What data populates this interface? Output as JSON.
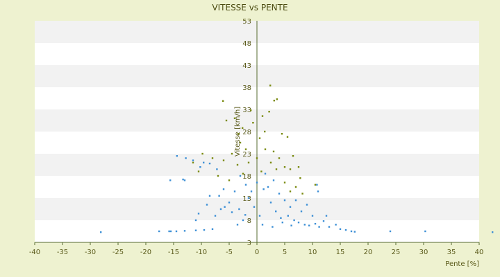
{
  "chart_data": {
    "type": "scatter",
    "title": "VITESSE vs PENTE",
    "xlabel": "Pente [%]",
    "ylabel": "Vitesse [km/h]",
    "xlim": [
      -40,
      40
    ],
    "ylim": [
      3,
      53
    ],
    "xticks": [
      -40,
      -35,
      -30,
      -25,
      -20,
      -15,
      -10,
      -5,
      0,
      5,
      10,
      15,
      20,
      25,
      30,
      35,
      40
    ],
    "yticks": [
      3,
      8,
      13,
      18,
      23,
      28,
      33,
      38,
      43,
      48,
      53
    ],
    "ytick_labels": [
      "3",
      "8",
      "13",
      "18",
      "23",
      "28",
      "33",
      "38",
      "43",
      "48",
      "53"
    ],
    "grid": "horizontal alternating bands",
    "legend": "none",
    "colors": {
      "series_blue": "#3c8fd6",
      "series_olive": "#7a8a10",
      "band_light": "#ffffff",
      "band_dark": "#f2f2f2",
      "background": "#eef2d0",
      "axis": "#556b2f"
    },
    "series": [
      {
        "color": "#3c8fd6",
        "points": [
          [
            -28.1,
            5.3
          ],
          [
            -17.6,
            5.5
          ],
          [
            -15.8,
            5.5
          ],
          [
            -15.5,
            5.5
          ],
          [
            -14.5,
            5.5
          ],
          [
            -13.0,
            5.6
          ],
          [
            -11.0,
            5.7
          ],
          [
            -9.5,
            5.8
          ],
          [
            -8.0,
            6.0
          ],
          [
            -15.6,
            17.0
          ],
          [
            -13.3,
            17.2
          ],
          [
            -13.0,
            17.0
          ],
          [
            -14.4,
            22.5
          ],
          [
            -12.8,
            22.0
          ],
          [
            -11.5,
            21.5
          ],
          [
            -10.2,
            20.0
          ],
          [
            -9.6,
            21.0
          ],
          [
            -8.5,
            20.8
          ],
          [
            -7.2,
            19.5
          ],
          [
            -6.8,
            13.5
          ],
          [
            -6.0,
            15.0
          ],
          [
            -5.8,
            11.0
          ],
          [
            -4.5,
            9.8
          ],
          [
            -3.2,
            10.5
          ],
          [
            -2.1,
            9.2
          ],
          [
            -1.0,
            14.5
          ],
          [
            0.0,
            16.5
          ],
          [
            1.2,
            15.0
          ],
          [
            2.5,
            12.0
          ],
          [
            3.4,
            10.0
          ],
          [
            4.3,
            8.5
          ],
          [
            5.6,
            9.0
          ],
          [
            6.7,
            8.0
          ],
          [
            7.5,
            7.5
          ],
          [
            8.6,
            7.0
          ],
          [
            9.4,
            6.8
          ],
          [
            10.5,
            7.2
          ],
          [
            11.2,
            6.5
          ],
          [
            12.0,
            7.8
          ],
          [
            13.0,
            6.5
          ],
          [
            14.2,
            7.0
          ],
          [
            15.0,
            6.0
          ],
          [
            16.0,
            5.8
          ],
          [
            17.0,
            5.5
          ],
          [
            17.6,
            5.4
          ],
          [
            24.0,
            5.5
          ],
          [
            30.3,
            5.5
          ],
          [
            42.4,
            5.3
          ],
          [
            -3.0,
            18.0
          ],
          [
            -2.0,
            16.0
          ],
          [
            -1.5,
            13.0
          ],
          [
            -0.5,
            11.0
          ],
          [
            0.5,
            9.0
          ],
          [
            1.5,
            18.5
          ],
          [
            2.0,
            15.5
          ],
          [
            3.0,
            17.0
          ],
          [
            4.0,
            14.0
          ],
          [
            5.0,
            12.5
          ],
          [
            6.0,
            11.0
          ],
          [
            7.0,
            12.5
          ],
          [
            8.0,
            10.0
          ],
          [
            9.0,
            11.5
          ],
          [
            10.0,
            9.0
          ],
          [
            10.8,
            16.0
          ],
          [
            11.0,
            14.5
          ],
          [
            12.5,
            9.0
          ],
          [
            -4.0,
            14.5
          ],
          [
            -5.0,
            12.0
          ],
          [
            -6.5,
            10.5
          ],
          [
            -7.5,
            9.0
          ],
          [
            -8.5,
            13.5
          ],
          [
            -9.0,
            11.5
          ],
          [
            -10.5,
            9.5
          ],
          [
            -11.0,
            8.0
          ],
          [
            -3.5,
            7.0
          ],
          [
            -2.5,
            8.0
          ],
          [
            1.0,
            7.0
          ],
          [
            2.8,
            6.5
          ],
          [
            4.6,
            7.5
          ],
          [
            6.2,
            6.8
          ]
        ]
      },
      {
        "color": "#7a8a10",
        "points": [
          [
            -6.1,
            34.9
          ],
          [
            -4.0,
            31.0
          ],
          [
            -5.5,
            30.5
          ],
          [
            -3.3,
            27.5
          ],
          [
            -2.6,
            28.8
          ],
          [
            -1.1,
            32.8
          ],
          [
            -0.7,
            30.0
          ],
          [
            0.0,
            22.0
          ],
          [
            0.5,
            26.5
          ],
          [
            1.0,
            31.5
          ],
          [
            1.4,
            28.0
          ],
          [
            2.2,
            32.5
          ],
          [
            2.4,
            38.4
          ],
          [
            3.1,
            35.0
          ],
          [
            3.6,
            35.3
          ],
          [
            4.5,
            27.5
          ],
          [
            5.5,
            26.8
          ],
          [
            5.0,
            20.0
          ],
          [
            6.0,
            19.5
          ],
          [
            7.0,
            15.5
          ],
          [
            7.8,
            17.5
          ],
          [
            8.2,
            14.0
          ],
          [
            10.5,
            16.0
          ],
          [
            -8.0,
            22.0
          ],
          [
            -9.8,
            23.0
          ],
          [
            -10.5,
            19.0
          ],
          [
            -11.5,
            21.0
          ],
          [
            -7.0,
            18.0
          ],
          [
            -6.0,
            21.5
          ],
          [
            -4.5,
            23.0
          ],
          [
            -3.5,
            20.5
          ],
          [
            -2.0,
            24.0
          ],
          [
            -1.5,
            21.0
          ],
          [
            1.5,
            24.0
          ],
          [
            3.0,
            23.5
          ],
          [
            4.0,
            22.0
          ],
          [
            6.5,
            22.5
          ],
          [
            7.5,
            20.0
          ],
          [
            -3.0,
            25.5
          ],
          [
            0.8,
            19.0
          ],
          [
            2.5,
            21.0
          ],
          [
            3.5,
            19.5
          ],
          [
            -5.0,
            17.0
          ],
          [
            -2.5,
            18.5
          ],
          [
            5.0,
            16.5
          ],
          [
            6.0,
            14.5
          ]
        ]
      }
    ]
  }
}
